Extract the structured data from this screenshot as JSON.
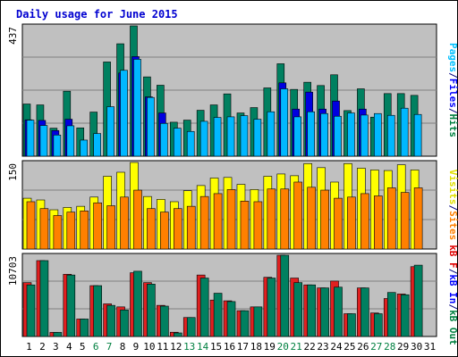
{
  "chart_data": {
    "type": "bar",
    "title": "Daily usage for June 2015",
    "days": [
      "1",
      "2",
      "3",
      "4",
      "5",
      "6",
      "7",
      "8",
      "9",
      "10",
      "11",
      "12",
      "13",
      "14",
      "15",
      "16",
      "17",
      "18",
      "19",
      "20",
      "21",
      "22",
      "23",
      "24",
      "25",
      "26",
      "27",
      "28",
      "29",
      "30",
      "31"
    ],
    "weekend_days": [
      "6",
      "7",
      "13",
      "14",
      "20",
      "21",
      "27",
      "28"
    ],
    "panels": [
      {
        "id": "top",
        "max_label": "437",
        "ymax": 437,
        "side_label": [
          {
            "text": "Pages",
            "color": "#00c0ff"
          },
          {
            "text": "/",
            "color": "#000080"
          },
          {
            "text": "Files",
            "color": "#0000ff"
          },
          {
            "text": "/",
            "color": "#000080"
          },
          {
            "text": "Hits",
            "color": "#008040"
          }
        ],
        "series": [
          {
            "name": "Hits",
            "color": "#008060",
            "values": [
              175,
              172,
              94,
              218,
              95,
              148,
              316,
              377,
              437,
              266,
              238,
              114,
              121,
              154,
              172,
              209,
              145,
              163,
              229,
              310,
              224,
              248,
              237,
              273,
              153,
              226,
              131,
              210,
              210,
              204,
              0
            ]
          },
          {
            "name": "Files",
            "color": "#0000e0",
            "values": [
              122,
              120,
              86,
              124,
              0,
              0,
              0,
              279,
              334,
              199,
              145,
              0,
              0,
              0,
              0,
              0,
              0,
              0,
              0,
              246,
              158,
              215,
              158,
              185,
              0,
              158,
              0,
              0,
              0,
              0,
              0
            ]
          },
          {
            "name": "Pages",
            "color": "#00b8ff",
            "values": [
              121,
              103,
              71,
              102,
              54,
              76,
              166,
              288,
              325,
              197,
              110,
              94,
              83,
              117,
              130,
              132,
              136,
              124,
              149,
              226,
              132,
              149,
              143,
              134,
              145,
              138,
              143,
              137,
              161,
              140,
              0
            ]
          }
        ]
      },
      {
        "id": "middle",
        "max_label": "150",
        "ymax": 150,
        "side_label": [
          {
            "text": "Visits",
            "color": "#e0e000"
          },
          {
            "text": "/",
            "color": "#000080"
          },
          {
            "text": "Sites",
            "color": "#ff8000"
          }
        ],
        "series": [
          {
            "name": "Visits",
            "color": "#ffff00",
            "values": [
              88,
              85,
              68,
              72,
              74,
              90,
              126,
              133,
              150,
              91,
              86,
              82,
              101,
              110,
              123,
              124,
              112,
              103,
              126,
              130,
              127,
              148,
              141,
              116,
              148,
              140,
              137,
              136,
              146,
              137,
              0
            ]
          },
          {
            "name": "Sites",
            "color": "#ff8000",
            "values": [
              82,
              70,
              58,
              64,
              66,
              80,
              75,
              90,
              102,
              70,
              64,
              70,
              74,
              91,
              96,
              103,
              83,
              82,
              104,
              104,
              116,
              107,
              102,
              88,
              90,
              96,
              92,
              106,
              98,
              106,
              0
            ]
          }
        ]
      },
      {
        "id": "bottom",
        "max_label": "10703",
        "ymax": 10703,
        "side_label": [
          {
            "text": "kB F",
            "color": "#e00000"
          },
          {
            "text": "/",
            "color": "#000080"
          },
          {
            "text": "kB In",
            "color": "#0000ff"
          },
          {
            "text": "/",
            "color": "#000080"
          },
          {
            "text": "kB Out",
            "color": "#008040"
          }
        ],
        "series": [
          {
            "name": "kB F",
            "color": "#e02020",
            "values": [
              7100,
              10000,
              540,
              8200,
              2300,
              6700,
              4300,
              3900,
              8400,
              7100,
              4100,
              560,
              2500,
              8100,
              4800,
              4700,
              3400,
              3900,
              7800,
              10700,
              7700,
              6800,
              6400,
              7300,
              3000,
              6400,
              3100,
              5000,
              5600,
              9200,
              0
            ]
          },
          {
            "name": "kB Out",
            "color": "#008060",
            "values": [
              6800,
              10000,
              540,
              8100,
              2300,
              6700,
              4100,
              3500,
              8600,
              6900,
              4000,
              470,
              2500,
              7700,
              5700,
              4600,
              3400,
              3900,
              7700,
              10700,
              7100,
              6800,
              6400,
              6500,
              3000,
              6400,
              3000,
              5800,
              5500,
              9400,
              0
            ]
          }
        ]
      }
    ]
  }
}
